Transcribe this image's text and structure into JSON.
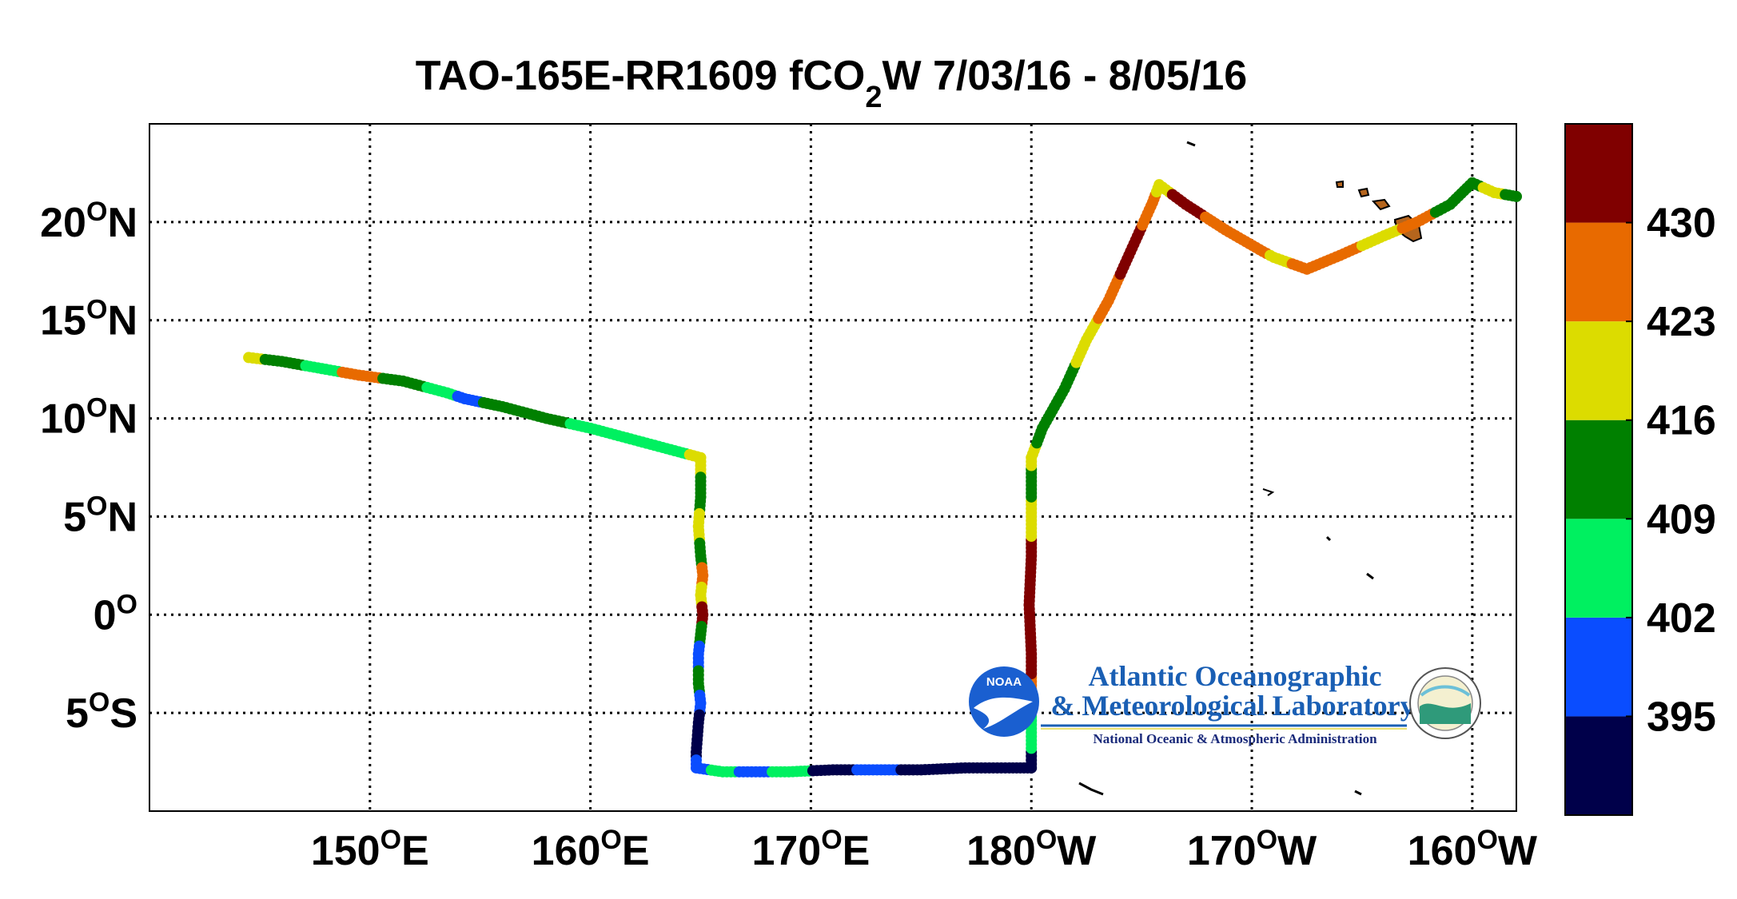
{
  "title": {
    "prefix": "TAO-165E-RR1609 fCO",
    "subscript": "2",
    "suffix": "W 7/03/16 - 8/05/16"
  },
  "x_ticks": [
    {
      "value": 150,
      "num": "150",
      "sup": "O",
      "hem": "E"
    },
    {
      "value": 160,
      "num": "160",
      "sup": "O",
      "hem": "E"
    },
    {
      "value": 170,
      "num": "170",
      "sup": "O",
      "hem": "E"
    },
    {
      "value": 180,
      "num": "180",
      "sup": "O",
      "hem": "W"
    },
    {
      "value": 190,
      "num": "170",
      "sup": "O",
      "hem": "W"
    },
    {
      "value": 200,
      "num": "160",
      "sup": "O",
      "hem": "W"
    }
  ],
  "y_ticks": [
    {
      "value": 20,
      "num": "20",
      "sup": "O",
      "hem": "N"
    },
    {
      "value": 15,
      "num": "15",
      "sup": "O",
      "hem": "N"
    },
    {
      "value": 10,
      "num": "10",
      "sup": "O",
      "hem": "N"
    },
    {
      "value": 5,
      "num": "5",
      "sup": "O",
      "hem": "N"
    },
    {
      "value": 0,
      "num": "0",
      "sup": "O",
      "hem": ""
    },
    {
      "value": -5,
      "num": "5",
      "sup": "O",
      "hem": "S"
    }
  ],
  "map_extent": {
    "lon_min": 140,
    "lon_max": 202,
    "lat_min": -10,
    "lat_max": 25
  },
  "colorbar": {
    "colors": [
      "#00004a",
      "#0a4dff",
      "#00f060",
      "#008000",
      "#dcdc00",
      "#e86a00",
      "#800000"
    ],
    "bounds": [
      388,
      395,
      402,
      409,
      416,
      423,
      430,
      437
    ],
    "tick_labels": [
      "395",
      "402",
      "409",
      "416",
      "423",
      "430"
    ],
    "tick_values": [
      395,
      402,
      409,
      416,
      423,
      430
    ]
  },
  "logo": {
    "line1": "Atlantic Oceanographic",
    "line2": "& Meteorological Laboratory",
    "line3": "National Oceanic & Atmospheric Administration",
    "badge": "NOAA"
  },
  "chart_data": {
    "type": "map-track",
    "title": "TAO-165E-RR1609 fCO2W 7/03/16 - 8/05/16",
    "xlim": [
      140,
      202
    ],
    "ylim": [
      -10,
      25
    ],
    "grid": true,
    "colorbar_placement": "right",
    "track": [
      {
        "lon": 144.5,
        "lat": 13.1,
        "v": 420
      },
      {
        "lon": 146.0,
        "lat": 12.9,
        "v": 412
      },
      {
        "lon": 148.0,
        "lat": 12.5,
        "v": 405
      },
      {
        "lon": 149.5,
        "lat": 12.2,
        "v": 427
      },
      {
        "lon": 151.5,
        "lat": 11.9,
        "v": 412
      },
      {
        "lon": 153.5,
        "lat": 11.3,
        "v": 405
      },
      {
        "lon": 154.3,
        "lat": 11.0,
        "v": 398
      },
      {
        "lon": 156.0,
        "lat": 10.6,
        "v": 412
      },
      {
        "lon": 158.0,
        "lat": 10.0,
        "v": 410
      },
      {
        "lon": 160.0,
        "lat": 9.5,
        "v": 405
      },
      {
        "lon": 162.0,
        "lat": 8.9,
        "v": 405
      },
      {
        "lon": 164.0,
        "lat": 8.3,
        "v": 405
      },
      {
        "lon": 165.0,
        "lat": 8.0,
        "v": 418
      },
      {
        "lon": 165.0,
        "lat": 6.0,
        "v": 412
      },
      {
        "lon": 164.9,
        "lat": 4.5,
        "v": 420
      },
      {
        "lon": 165.0,
        "lat": 3.0,
        "v": 412
      },
      {
        "lon": 165.1,
        "lat": 2.0,
        "v": 427
      },
      {
        "lon": 165.0,
        "lat": 1.0,
        "v": 420
      },
      {
        "lon": 165.1,
        "lat": 0.0,
        "v": 433
      },
      {
        "lon": 165.0,
        "lat": -1.0,
        "v": 412
      },
      {
        "lon": 164.9,
        "lat": -2.0,
        "v": 398
      },
      {
        "lon": 164.9,
        "lat": -3.5,
        "v": 412
      },
      {
        "lon": 165.0,
        "lat": -4.5,
        "v": 398
      },
      {
        "lon": 164.9,
        "lat": -5.5,
        "v": 391
      },
      {
        "lon": 164.8,
        "lat": -7.0,
        "v": 391
      },
      {
        "lon": 164.8,
        "lat": -7.8,
        "v": 398
      },
      {
        "lon": 166.0,
        "lat": -8.0,
        "v": 405
      },
      {
        "lon": 167.5,
        "lat": -8.0,
        "v": 398
      },
      {
        "lon": 169.0,
        "lat": -8.0,
        "v": 405
      },
      {
        "lon": 171.0,
        "lat": -7.9,
        "v": 391
      },
      {
        "lon": 173.0,
        "lat": -7.9,
        "v": 398
      },
      {
        "lon": 175.0,
        "lat": -7.9,
        "v": 391
      },
      {
        "lon": 177.0,
        "lat": -7.8,
        "v": 391
      },
      {
        "lon": 179.0,
        "lat": -7.8,
        "v": 391
      },
      {
        "lon": 180.0,
        "lat": -7.8,
        "v": 391
      },
      {
        "lon": 180.0,
        "lat": -6.0,
        "v": 405
      },
      {
        "lon": 180.0,
        "lat": -4.0,
        "v": 427
      },
      {
        "lon": 180.0,
        "lat": -2.0,
        "v": 433
      },
      {
        "lon": 179.9,
        "lat": 0.5,
        "v": 433
      },
      {
        "lon": 180.0,
        "lat": 3.0,
        "v": 433
      },
      {
        "lon": 180.0,
        "lat": 5.0,
        "v": 420
      },
      {
        "lon": 180.0,
        "lat": 7.0,
        "v": 412
      },
      {
        "lon": 180.0,
        "lat": 8.0,
        "v": 420
      },
      {
        "lon": 180.5,
        "lat": 9.5,
        "v": 412
      },
      {
        "lon": 181.5,
        "lat": 11.5,
        "v": 412
      },
      {
        "lon": 182.5,
        "lat": 14.0,
        "v": 420
      },
      {
        "lon": 183.5,
        "lat": 16.0,
        "v": 427
      },
      {
        "lon": 184.5,
        "lat": 18.5,
        "v": 433
      },
      {
        "lon": 185.5,
        "lat": 21.0,
        "v": 427
      },
      {
        "lon": 185.8,
        "lat": 21.9,
        "v": 420
      },
      {
        "lon": 187.0,
        "lat": 20.9,
        "v": 433
      },
      {
        "lon": 188.8,
        "lat": 19.6,
        "v": 427
      },
      {
        "lon": 190.5,
        "lat": 18.5,
        "v": 427
      },
      {
        "lon": 191.0,
        "lat": 18.2,
        "v": 420
      },
      {
        "lon": 192.5,
        "lat": 17.6,
        "v": 427
      },
      {
        "lon": 194.0,
        "lat": 18.3,
        "v": 427
      },
      {
        "lon": 196.0,
        "lat": 19.3,
        "v": 420
      },
      {
        "lon": 197.5,
        "lat": 20.0,
        "v": 427
      },
      {
        "lon": 199.0,
        "lat": 20.9,
        "v": 412
      },
      {
        "lon": 200.0,
        "lat": 22.0,
        "v": 412
      },
      {
        "lon": 201.0,
        "lat": 21.5,
        "v": 420
      },
      {
        "lon": 202.0,
        "lat": 21.3,
        "v": 412
      }
    ]
  }
}
